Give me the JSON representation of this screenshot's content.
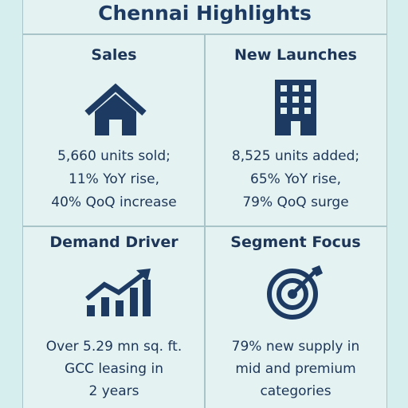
{
  "header": {
    "title": "Chennai Highlights"
  },
  "cells": [
    {
      "title": "Sales",
      "lines": [
        "5,660 units sold;",
        "11% YoY rise,",
        "40% QoQ increase"
      ]
    },
    {
      "title": "New Launches",
      "lines": [
        "8,525 units added;",
        "65% YoY rise,",
        "79% QoQ surge"
      ]
    },
    {
      "title": "Demand Driver",
      "lines": [
        "Over 5.29 mn sq. ft.",
        "GCC leasing in",
        "2 years"
      ]
    },
    {
      "title": "Segment Focus",
      "lines": [
        "79% new supply in",
        "mid and premium",
        "categories"
      ]
    }
  ]
}
